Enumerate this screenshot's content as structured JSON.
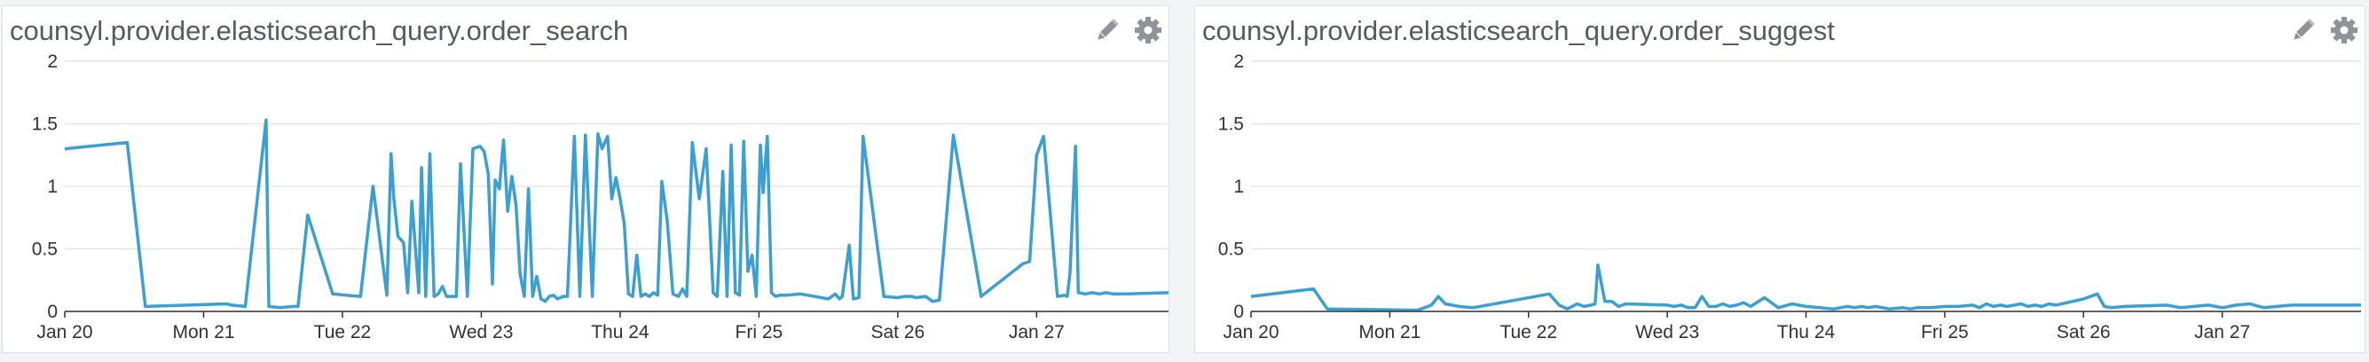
{
  "colors": {
    "series": "#3a9fd3",
    "grid": "#e4e6e9",
    "axis": "#333333",
    "icon": "#8e949a"
  },
  "icons": [
    "pencil-icon",
    "gear-icon"
  ],
  "panels": [
    {
      "title": "counsyl.provider.elasticsearch_query.order_search",
      "chart_data": {
        "type": "line",
        "title": "counsyl.provider.elasticsearch_query.order_search",
        "x_domain": [
          0,
          7.95
        ],
        "ylim": [
          0,
          2
        ],
        "yticks": [
          0,
          0.5,
          1,
          1.5,
          2
        ],
        "ytick_labels": [
          "0",
          "0.5",
          "1",
          "1.5",
          "2"
        ],
        "xticks": [
          0,
          1,
          2,
          3,
          4,
          5,
          6,
          7
        ],
        "xtick_labels": [
          "Jan 20",
          "Mon 21",
          "Tue 22",
          "Wed 23",
          "Thu 24",
          "Fri 25",
          "Sat 26",
          "Jan 27"
        ],
        "grid": true,
        "legend": "none",
        "series": [
          {
            "x": [
              0,
              0.45,
              0.58,
              1.17,
              1.2,
              1.3,
              1.45,
              1.47,
              1.55,
              1.65,
              1.68,
              1.75,
              1.93,
              2.13,
              2.22,
              2.32,
              2.35,
              2.37,
              2.4,
              2.44,
              2.47,
              2.5,
              2.55,
              2.57,
              2.6,
              2.63,
              2.66,
              2.69,
              2.72,
              2.75,
              2.78,
              2.82,
              2.85,
              2.9,
              2.94,
              2.99,
              3.02,
              3.05,
              3.08,
              3.1,
              3.13,
              3.16,
              3.19,
              3.22,
              3.25,
              3.28,
              3.31,
              3.34,
              3.37,
              3.4,
              3.43,
              3.46,
              3.49,
              3.52,
              3.55,
              3.59,
              3.62,
              3.67,
              3.71,
              3.75,
              3.8,
              3.84,
              3.87,
              3.91,
              3.94,
              3.97,
              4.0,
              4.03,
              4.06,
              4.09,
              4.12,
              4.15,
              4.18,
              4.21,
              4.24,
              4.27,
              4.3,
              4.34,
              4.38,
              4.42,
              4.45,
              4.48,
              4.52,
              4.57,
              4.62,
              4.67,
              4.7,
              4.74,
              4.77,
              4.8,
              4.83,
              4.86,
              4.89,
              4.92,
              4.95,
              4.98,
              5.01,
              5.03,
              5.06,
              5.09,
              5.12,
              5.15,
              5.2,
              5.3,
              5.5,
              5.55,
              5.58,
              5.6,
              5.65,
              5.68,
              5.72,
              5.75,
              5.9,
              6.0,
              6.05,
              6.1,
              6.13,
              6.2,
              6.25,
              6.3,
              6.4,
              6.6,
              6.9,
              6.95,
              7.0,
              7.05,
              7.15,
              7.2,
              7.22,
              7.24,
              7.28,
              7.3,
              7.35,
              7.4,
              7.45,
              7.5,
              7.55,
              7.63,
              7.95
            ],
            "y": [
              1.3,
              1.35,
              0.04,
              0.06,
              0.05,
              0.04,
              1.53,
              0.04,
              0.03,
              0.04,
              0.04,
              0.77,
              0.14,
              0.12,
              1.0,
              0.13,
              1.26,
              0.9,
              0.6,
              0.55,
              0.15,
              0.88,
              0.15,
              1.15,
              0.12,
              1.26,
              0.12,
              0.14,
              0.2,
              0.12,
              0.12,
              0.12,
              1.18,
              0.12,
              1.3,
              1.32,
              1.28,
              1.1,
              0.22,
              1.05,
              0.98,
              1.37,
              0.8,
              1.08,
              0.85,
              0.3,
              0.12,
              0.98,
              0.12,
              0.28,
              0.1,
              0.08,
              0.12,
              0.13,
              0.1,
              0.12,
              0.12,
              1.4,
              0.12,
              1.41,
              0.12,
              1.42,
              1.3,
              1.4,
              0.9,
              1.07,
              0.9,
              0.7,
              0.14,
              0.12,
              0.45,
              0.12,
              0.14,
              0.12,
              0.15,
              0.13,
              1.04,
              0.72,
              0.14,
              0.12,
              0.18,
              0.12,
              1.35,
              0.9,
              1.3,
              0.15,
              0.12,
              1.12,
              0.12,
              1.33,
              0.15,
              0.13,
              1.36,
              0.32,
              0.45,
              0.12,
              1.33,
              0.95,
              1.4,
              0.15,
              0.12,
              0.13,
              0.13,
              0.14,
              0.1,
              0.14,
              0.1,
              0.12,
              0.53,
              0.1,
              0.11,
              1.4,
              0.12,
              0.11,
              0.12,
              0.12,
              0.11,
              0.12,
              0.08,
              0.09,
              1.41,
              0.12,
              0.38,
              0.4,
              1.25,
              1.4,
              0.12,
              0.13,
              0.12,
              0.3,
              1.32,
              0.15,
              0.14,
              0.15,
              0.14,
              0.15,
              0.14,
              0.14,
              0.15
            ]
          }
        ]
      }
    },
    {
      "title": "counsyl.provider.elasticsearch_query.order_suggest",
      "chart_data": {
        "type": "line",
        "title": "counsyl.provider.elasticsearch_query.order_suggest",
        "x_domain": [
          0,
          8.0
        ],
        "ylim": [
          0,
          2
        ],
        "yticks": [
          0,
          0.5,
          1,
          1.5,
          2
        ],
        "ytick_labels": [
          "0",
          "0.5",
          "1",
          "1.5",
          "2"
        ],
        "xticks": [
          0,
          1,
          2,
          3,
          4,
          5,
          6,
          7
        ],
        "xtick_labels": [
          "Jan 20",
          "Mon 21",
          "Tue 22",
          "Wed 23",
          "Thu 24",
          "Fri 25",
          "Sat 26",
          "Jan 27"
        ],
        "grid": true,
        "legend": "none",
        "series": [
          {
            "x": [
              0,
              0.45,
              0.55,
              1.2,
              1.25,
              1.3,
              1.35,
              1.4,
              1.5,
              1.6,
              2.15,
              2.22,
              2.28,
              2.35,
              2.4,
              2.45,
              2.48,
              2.5,
              2.55,
              2.6,
              2.65,
              2.7,
              3.0,
              3.05,
              3.1,
              3.15,
              3.2,
              3.25,
              3.3,
              3.35,
              3.4,
              3.45,
              3.5,
              3.55,
              3.6,
              3.7,
              3.8,
              3.9,
              4.0,
              4.1,
              4.2,
              4.3,
              4.35,
              4.4,
              4.45,
              4.5,
              4.6,
              4.7,
              4.75,
              4.8,
              4.9,
              5.0,
              5.1,
              5.2,
              5.25,
              5.3,
              5.35,
              5.4,
              5.45,
              5.5,
              5.55,
              5.6,
              5.65,
              5.7,
              5.75,
              5.8,
              6.0,
              6.1,
              6.15,
              6.2,
              6.3,
              6.6,
              6.7,
              6.9,
              7.0,
              7.05,
              7.1,
              7.2,
              7.3,
              7.5,
              8.0
            ],
            "y": [
              0.12,
              0.18,
              0.02,
              0.01,
              0.03,
              0.05,
              0.12,
              0.06,
              0.04,
              0.03,
              0.14,
              0.05,
              0.02,
              0.06,
              0.04,
              0.05,
              0.06,
              0.37,
              0.08,
              0.08,
              0.04,
              0.06,
              0.05,
              0.04,
              0.05,
              0.03,
              0.03,
              0.12,
              0.04,
              0.04,
              0.06,
              0.04,
              0.05,
              0.07,
              0.04,
              0.11,
              0.03,
              0.06,
              0.04,
              0.03,
              0.02,
              0.04,
              0.03,
              0.04,
              0.03,
              0.04,
              0.02,
              0.03,
              0.02,
              0.03,
              0.03,
              0.04,
              0.04,
              0.05,
              0.03,
              0.06,
              0.04,
              0.05,
              0.04,
              0.05,
              0.06,
              0.04,
              0.05,
              0.04,
              0.06,
              0.05,
              0.1,
              0.14,
              0.04,
              0.03,
              0.04,
              0.05,
              0.03,
              0.05,
              0.03,
              0.04,
              0.05,
              0.06,
              0.03,
              0.05,
              0.05
            ]
          }
        ]
      }
    }
  ]
}
